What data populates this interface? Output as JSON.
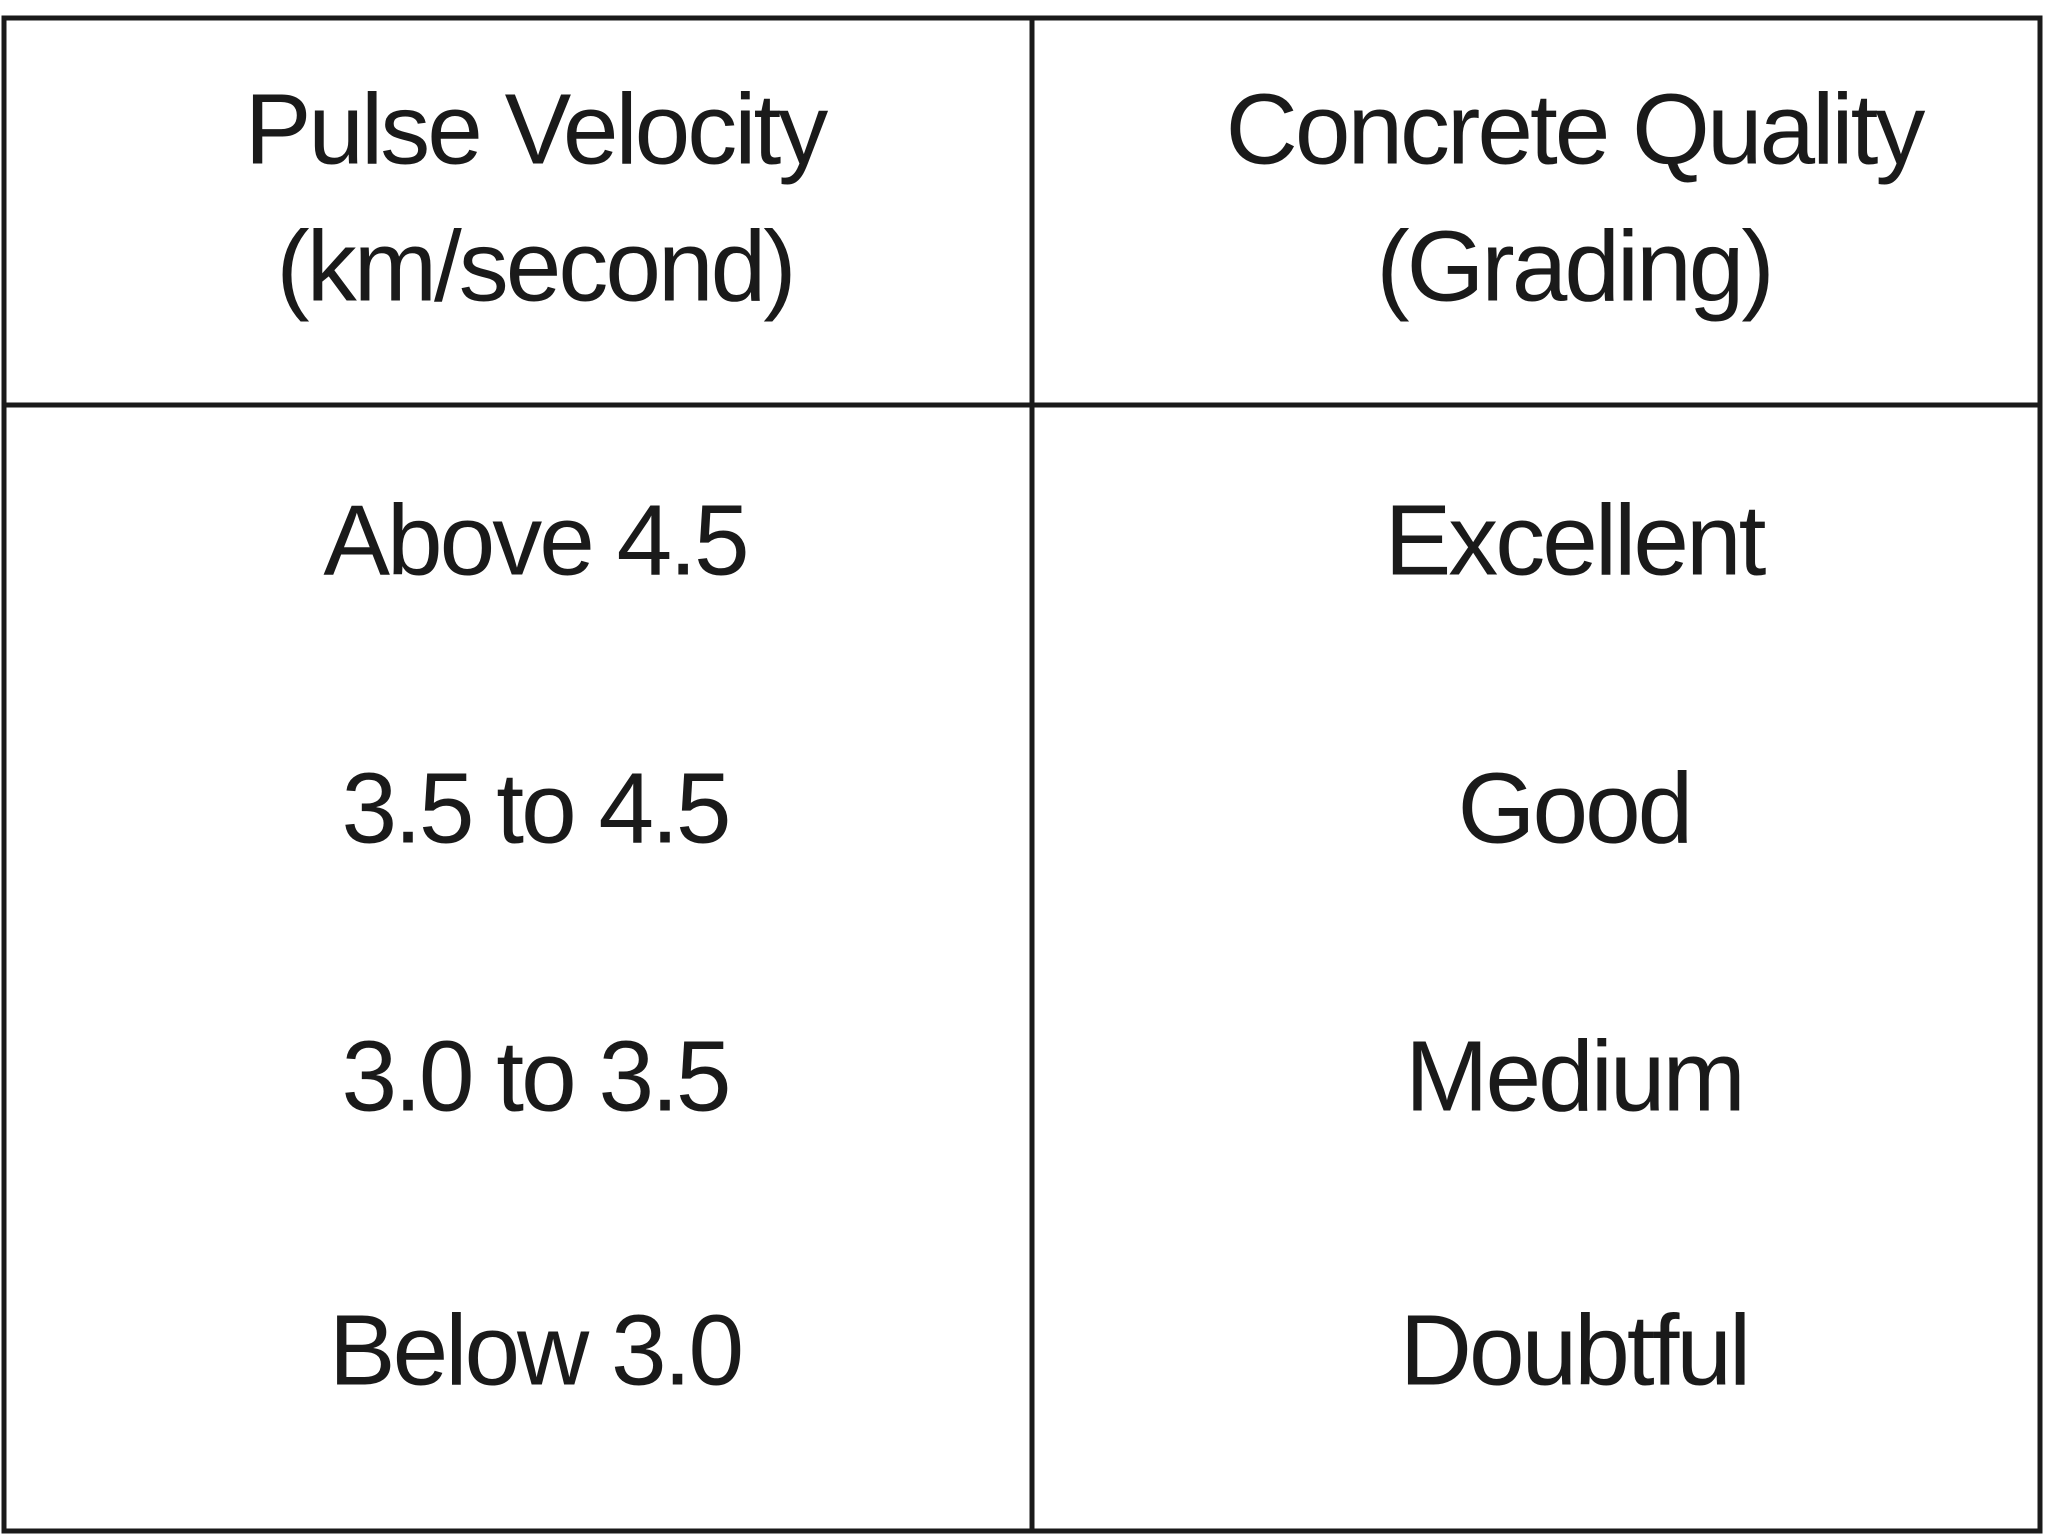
{
  "table": {
    "header": [
      [
        "Pulse Velocity",
        "(km/second)"
      ],
      [
        "Concrete Quality",
        "(Grading)"
      ]
    ],
    "rows": [
      [
        "Above 4.5",
        "Excellent"
      ],
      [
        "3.5 to 4.5",
        "Good"
      ],
      [
        "3.0 to 3.5",
        "Medium"
      ],
      [
        "Below 3.0",
        "Doubtful"
      ]
    ]
  }
}
